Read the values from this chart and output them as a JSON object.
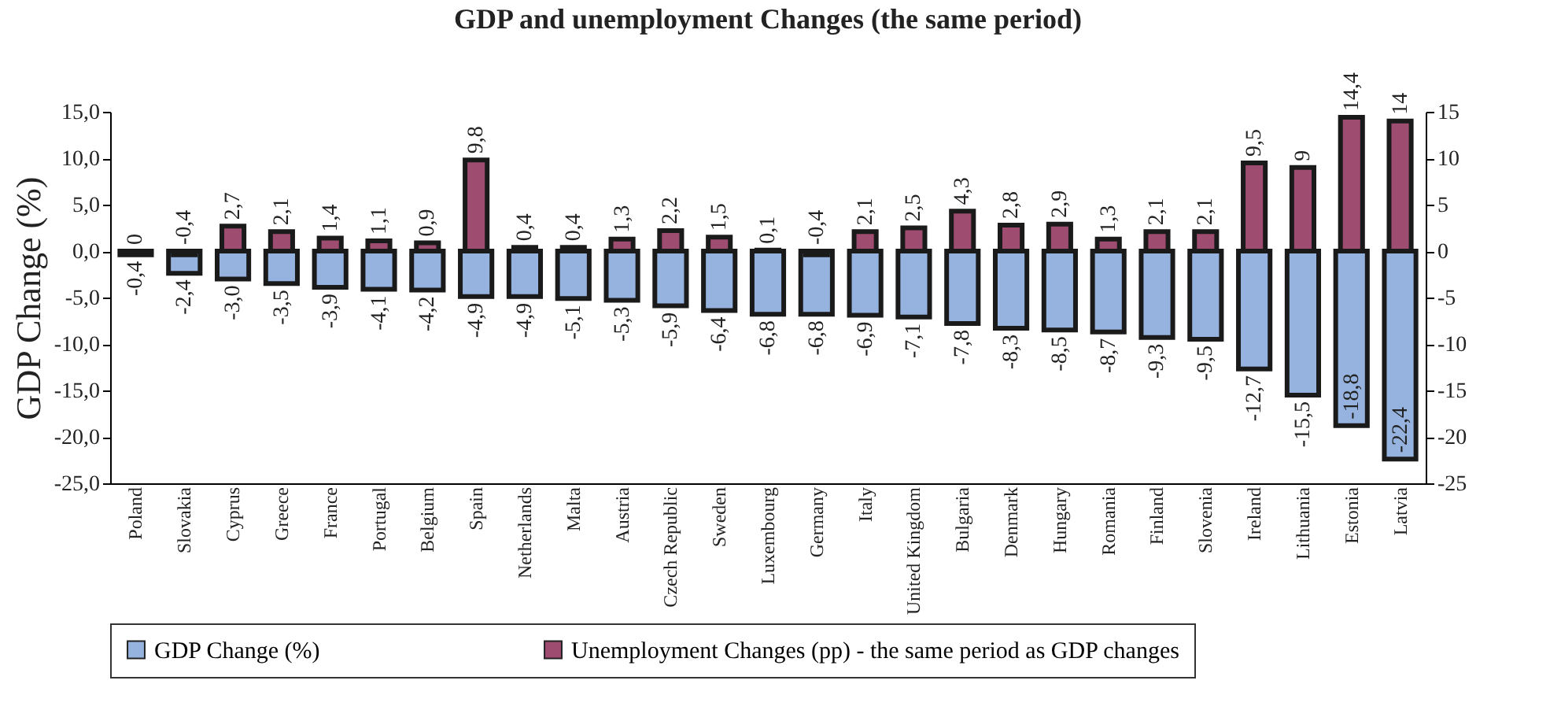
{
  "chart_data": {
    "type": "bar",
    "title": "GDP and unemployment Changes (the same period)",
    "ylabel": "GDP Change (%)",
    "categories": [
      "Poland",
      "Slovakia",
      "Cyprus",
      "Greece",
      "France",
      "Portugal",
      "Belgium",
      "Spain",
      "Netherlands",
      "Malta",
      "Austria",
      "Czech Republic",
      "Sweden",
      "Luxembourg",
      "Germany",
      "Italy",
      "United Kingdom",
      "Bulgaria",
      "Denmark",
      "Hungary",
      "Romania",
      "Finland",
      "Slovenia",
      "Ireland",
      "Lithuania",
      "Estonia",
      "Latvia"
    ],
    "series": [
      {
        "name": "GDP Change (%)",
        "color": "#95b3de",
        "values": [
          -0.4,
          -2.4,
          -3.0,
          -3.5,
          -3.9,
          -4.1,
          -4.2,
          -4.9,
          -4.9,
          -5.1,
          -5.3,
          -5.9,
          -6.4,
          -6.8,
          -6.8,
          -6.9,
          -7.1,
          -7.8,
          -8.3,
          -8.5,
          -8.7,
          -9.3,
          -9.5,
          -12.7,
          -15.5,
          -18.8,
          -22.4
        ],
        "value_labels": [
          "-0,4",
          "-2,4",
          "-3,0",
          "-3,5",
          "-3,9",
          "-4,1",
          "-4,2",
          "-4,9",
          "-4,9",
          "-5,1",
          "-5,3",
          "-5,9",
          "-6,4",
          "-6,8",
          "-6,8",
          "-6,9",
          "-7,1",
          "-7,8",
          "-8,3",
          "-8,5",
          "-8,7",
          "-9,3",
          "-9,5",
          "-12,7",
          "-15,5",
          "-18,8",
          "-22,4"
        ]
      },
      {
        "name": "Unemployment Changes (pp) - the same period as GDP changes",
        "color": "#9e4c70",
        "axis": "y2",
        "values": [
          0,
          -0.4,
          2.7,
          2.1,
          1.4,
          1.1,
          0.9,
          9.8,
          0.4,
          0.4,
          1.3,
          2.2,
          1.5,
          0.1,
          -0.4,
          2.1,
          2.5,
          4.3,
          2.8,
          2.9,
          1.3,
          2.1,
          2.1,
          9.5,
          9,
          14.4,
          14
        ],
        "value_labels": [
          "0",
          "-0,4",
          "2,7",
          "2,1",
          "1,4",
          "1,1",
          "0,9",
          "9,8",
          "0,4",
          "0,4",
          "1,3",
          "2,2",
          "1,5",
          "0,1",
          "-0,4",
          "2,1",
          "2,5",
          "4,3",
          "2,8",
          "2,9",
          "1,3",
          "2,1",
          "2,1",
          "9,5",
          "9",
          "14,4",
          "14"
        ]
      }
    ],
    "ylim": [
      -25,
      15
    ],
    "yticks": [
      {
        "value": -25,
        "label": "-25,0"
      },
      {
        "value": -20,
        "label": "-20,0"
      },
      {
        "value": -15,
        "label": "-15,0"
      },
      {
        "value": -10,
        "label": "-10,0"
      },
      {
        "value": -5,
        "label": "-5,0"
      },
      {
        "value": 0,
        "label": "0,0"
      },
      {
        "value": 5,
        "label": "5,0"
      },
      {
        "value": 10,
        "label": "10,0"
      },
      {
        "value": 15,
        "label": "15,0"
      }
    ],
    "y2lim": [
      -25,
      15
    ],
    "y2ticks": [
      -25,
      -20,
      -15,
      -10,
      -5,
      0,
      5,
      10,
      15
    ],
    "grid": false,
    "legend": "bottom"
  }
}
